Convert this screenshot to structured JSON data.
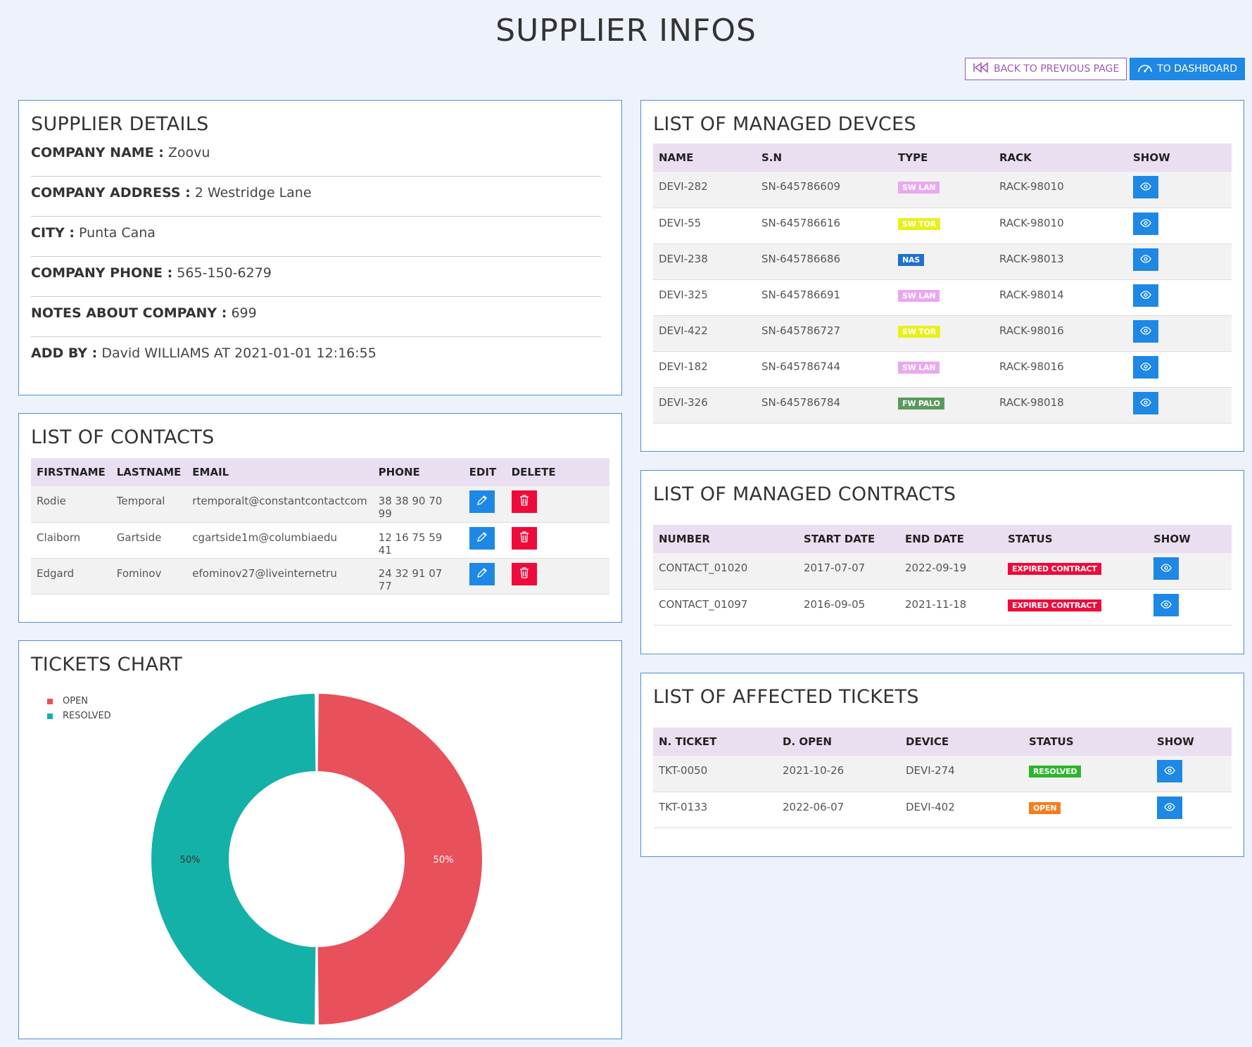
{
  "page": {
    "title": "SUPPLIER INFOS"
  },
  "nav": {
    "back_label": "BACK TO PREVIOUS PAGE",
    "dashboard_label": "TO DASHBOARD"
  },
  "supplier": {
    "heading": "SUPPLIER DETAILS",
    "rows": [
      {
        "key": "COMPANY NAME :",
        "value": "Zoovu"
      },
      {
        "key": "COMPANY ADDRESS :",
        "value": "2 Westridge Lane"
      },
      {
        "key": "CITY :",
        "value": "Punta Cana"
      },
      {
        "key": "COMPANY PHONE :",
        "value": "565-150-6279"
      },
      {
        "key": "NOTES ABOUT COMPANY :",
        "value": "699"
      },
      {
        "key": "ADD BY :",
        "value": "David WILLIAMS AT 2021-01-01 12:16:55"
      }
    ]
  },
  "contacts": {
    "heading": "LIST OF CONTACTS",
    "columns": [
      "FIRSTNAME",
      "LASTNAME",
      "EMAIL",
      "PHONE",
      "EDIT",
      "DELETE"
    ],
    "rows": [
      {
        "firstname": "Rodie",
        "lastname": "Temporal",
        "email": "rtemporalt@constantcontactcom",
        "phone": "38 38 90 70 99"
      },
      {
        "firstname": "Claiborn",
        "lastname": "Gartside",
        "email": "cgartside1m@columbiaedu",
        "phone": "12 16 75 59 41"
      },
      {
        "firstname": "Edgard",
        "lastname": "Fominov",
        "email": "efominov27@liveinternetru",
        "phone": "24 32 91 07 77"
      }
    ]
  },
  "tickets_chart": {
    "heading": "TICKETS CHART"
  },
  "chart_data": {
    "type": "pie",
    "categories": [
      "OPEN",
      "RESOLVED"
    ],
    "values": [
      50,
      50
    ],
    "labels": [
      "50%",
      "50%"
    ],
    "colors": [
      "#e8505b",
      "#14b1a8"
    ],
    "title": "",
    "legend": "top-left",
    "donut": true
  },
  "devices": {
    "heading": "LIST OF MANAGED DEVCES",
    "columns": [
      "NAME",
      "S.N",
      "TYPE",
      "RACK",
      "SHOW"
    ],
    "rows": [
      {
        "name": "DEVI-282",
        "sn": "SN-645786609",
        "type": "SW LAN",
        "type_color": "#e9a8f0",
        "rack": "RACK-98010"
      },
      {
        "name": "DEVI-55",
        "sn": "SN-645786616",
        "type": "SW TOR",
        "type_color": "#e8f01c",
        "rack": "RACK-98010"
      },
      {
        "name": "DEVI-238",
        "sn": "SN-645786686",
        "type": "NAS",
        "type_color": "#1e6fd0",
        "rack": "RACK-98013"
      },
      {
        "name": "DEVI-325",
        "sn": "SN-645786691",
        "type": "SW LAN",
        "type_color": "#e9a8f0",
        "rack": "RACK-98014"
      },
      {
        "name": "DEVI-422",
        "sn": "SN-645786727",
        "type": "SW TOR",
        "type_color": "#e8f01c",
        "rack": "RACK-98016"
      },
      {
        "name": "DEVI-182",
        "sn": "SN-645786744",
        "type": "SW LAN",
        "type_color": "#e9a8f0",
        "rack": "RACK-98016"
      },
      {
        "name": "DEVI-326",
        "sn": "SN-645786784",
        "type": "FW PALO",
        "type_color": "#5a9a5e",
        "rack": "RACK-98018"
      }
    ]
  },
  "contracts": {
    "heading": "LIST OF MANAGED CONTRACTS",
    "columns": [
      "NUMBER",
      "START DATE",
      "END DATE",
      "STATUS",
      "SHOW"
    ],
    "rows": [
      {
        "number": "CONTACT_01020",
        "start": "2017-07-07",
        "end": "2022-09-19",
        "status": "EXPIRED CONTRACT",
        "status_color": "#ee0a3a"
      },
      {
        "number": "CONTACT_01097",
        "start": "2016-09-05",
        "end": "2021-11-18",
        "status": "EXPIRED CONTRACT",
        "status_color": "#ee0a3a"
      }
    ]
  },
  "tickets": {
    "heading": "LIST OF AFFECTED TICKETS",
    "columns": [
      "N. TICKET",
      "D. OPEN",
      "DEVICE",
      "STATUS",
      "SHOW"
    ],
    "rows": [
      {
        "ticket": "TKT-0050",
        "opened": "2021-10-26",
        "device": "DEVI-274",
        "status": "RESOLVED",
        "status_color": "#2db52d"
      },
      {
        "ticket": "TKT-0133",
        "opened": "2022-06-07",
        "device": "DEVI-402",
        "status": "OPEN",
        "status_color": "#f57c1f"
      }
    ]
  }
}
